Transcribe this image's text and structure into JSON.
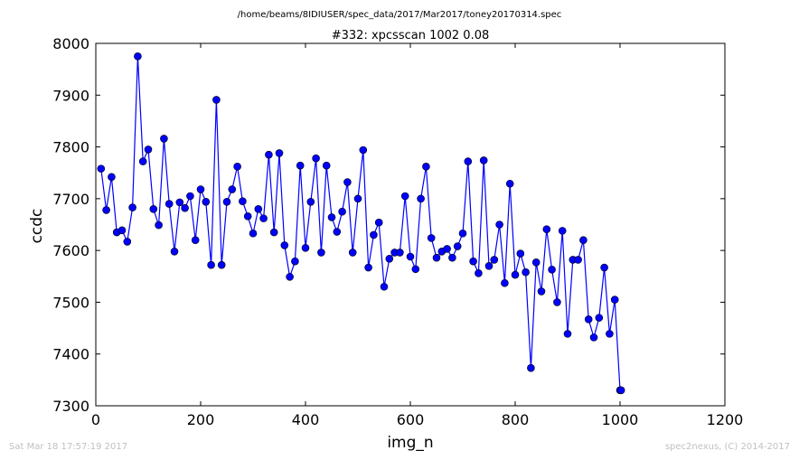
{
  "suptitle": "/home/beams/8IDIUSER/spec_data/2017/Mar2017/toney20170314.spec",
  "footer": {
    "timestamp": "Sat Mar 18 17:57:19 2017",
    "credit": "spec2nexus, (C) 2014-2017"
  },
  "chart_data": {
    "type": "line",
    "title": "#332: xpcsscan 1002 0.08",
    "xlabel": "img_n",
    "ylabel": "ccdc",
    "xlim": [
      0,
      1200
    ],
    "ylim": [
      7300,
      8000
    ],
    "xticks": [
      0,
      200,
      400,
      600,
      800,
      1000,
      1200
    ],
    "yticks": [
      7300,
      7400,
      7500,
      7600,
      7700,
      7800,
      7900,
      8000
    ],
    "grid": false,
    "line_color": "#0000ff",
    "marker_color": "#0000ff",
    "marker": "circle",
    "x": [
      10,
      20,
      30,
      40,
      50,
      60,
      70,
      80,
      90,
      100,
      110,
      120,
      130,
      140,
      150,
      160,
      170,
      180,
      190,
      200,
      210,
      220,
      230,
      240,
      250,
      260,
      270,
      280,
      290,
      300,
      310,
      320,
      330,
      340,
      350,
      360,
      370,
      380,
      390,
      400,
      410,
      420,
      430,
      440,
      450,
      460,
      470,
      480,
      490,
      500,
      510,
      520,
      530,
      540,
      550,
      560,
      570,
      580,
      590,
      600,
      610,
      620,
      630,
      640,
      650,
      660,
      670,
      680,
      690,
      700,
      710,
      720,
      730,
      740,
      750,
      760,
      770,
      780,
      790,
      800,
      810,
      820,
      830,
      840,
      850,
      860,
      870,
      880,
      890,
      900,
      910,
      920,
      930,
      940,
      950,
      960,
      970,
      980,
      990,
      1000,
      1002
    ],
    "y": [
      7758,
      7678,
      7742,
      7635,
      7639,
      7617,
      7683,
      7975,
      7772,
      7795,
      7680,
      7649,
      7816,
      7690,
      7598,
      7693,
      7682,
      7705,
      7620,
      7718,
      7694,
      7572,
      7891,
      7572,
      7694,
      7718,
      7762,
      7695,
      7666,
      7633,
      7680,
      7662,
      7785,
      7635,
      7788,
      7610,
      7549,
      7579,
      7764,
      7605,
      7694,
      7778,
      7596,
      7764,
      7664,
      7636,
      7675,
      7732,
      7596,
      7700,
      7794,
      7567,
      7630,
      7654,
      7530,
      7584,
      7596,
      7596,
      7705,
      7588,
      7564,
      7700,
      7762,
      7624,
      7586,
      7598,
      7603,
      7586,
      7608,
      7633,
      7772,
      7579,
      7556,
      7774,
      7570,
      7582,
      7650,
      7537,
      7729,
      7553,
      7594,
      7558,
      7373,
      7577,
      7521,
      7641,
      7563,
      7500,
      7638,
      7439,
      7582,
      7582,
      7620,
      7467,
      7432,
      7470,
      7567,
      7439,
      7505,
      7330,
      7330
    ]
  }
}
